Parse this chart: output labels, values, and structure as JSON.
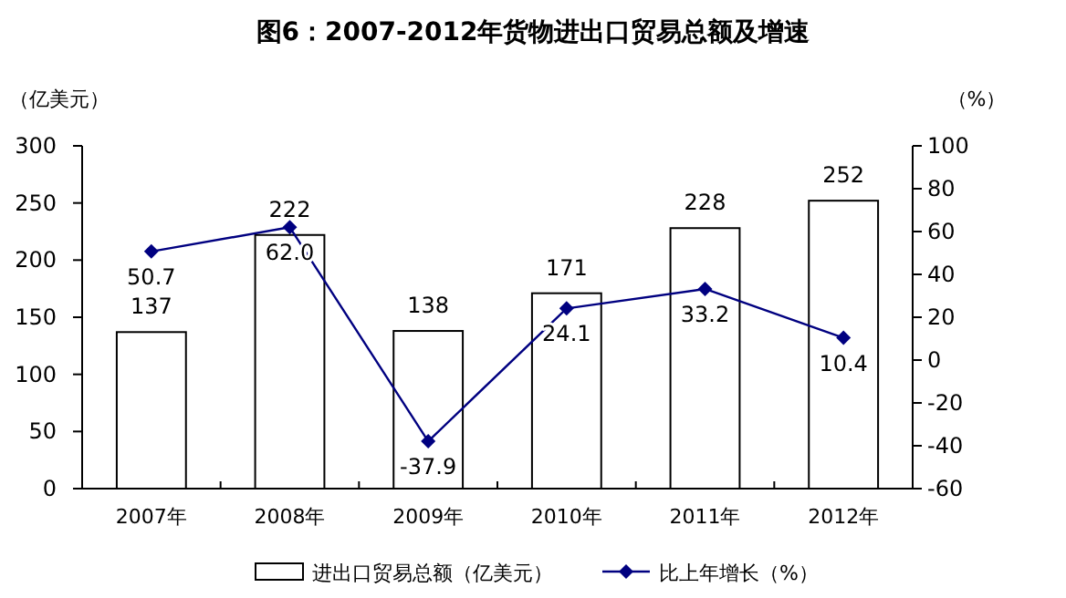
{
  "chart_data": {
    "type": "bar",
    "title": "图6：2007-2012年货物进出口贸易总额及增速",
    "ylabel": "（亿美元）",
    "y2label": "（%）",
    "categories": [
      "2007年",
      "2008年",
      "2009年",
      "2010年",
      "2011年",
      "2012年"
    ],
    "series": [
      {
        "name": "进出口贸易总额（亿美元）",
        "color": "#ffffff",
        "values": [
          137,
          222,
          138,
          171,
          228,
          252
        ]
      },
      {
        "name": "比上年增长（%）",
        "type": "line",
        "axis": "y2",
        "color": "#000080",
        "marker": "diamond",
        "values": [
          50.7,
          62.0,
          -37.9,
          24.1,
          33.2,
          10.4
        ],
        "value_labels": [
          "50.7",
          "62.0",
          "-37.9",
          "24.1",
          "33.2",
          "10.4"
        ]
      }
    ],
    "ylim": [
      0,
      300
    ],
    "yticks": [
      0,
      50,
      100,
      150,
      200,
      250,
      300
    ],
    "y2lim": [
      -60,
      100
    ],
    "y2ticks": [
      -60,
      -40,
      -20,
      0,
      20,
      40,
      60,
      80,
      100
    ],
    "data_labels": true,
    "legend": "bottom",
    "grid": false
  }
}
